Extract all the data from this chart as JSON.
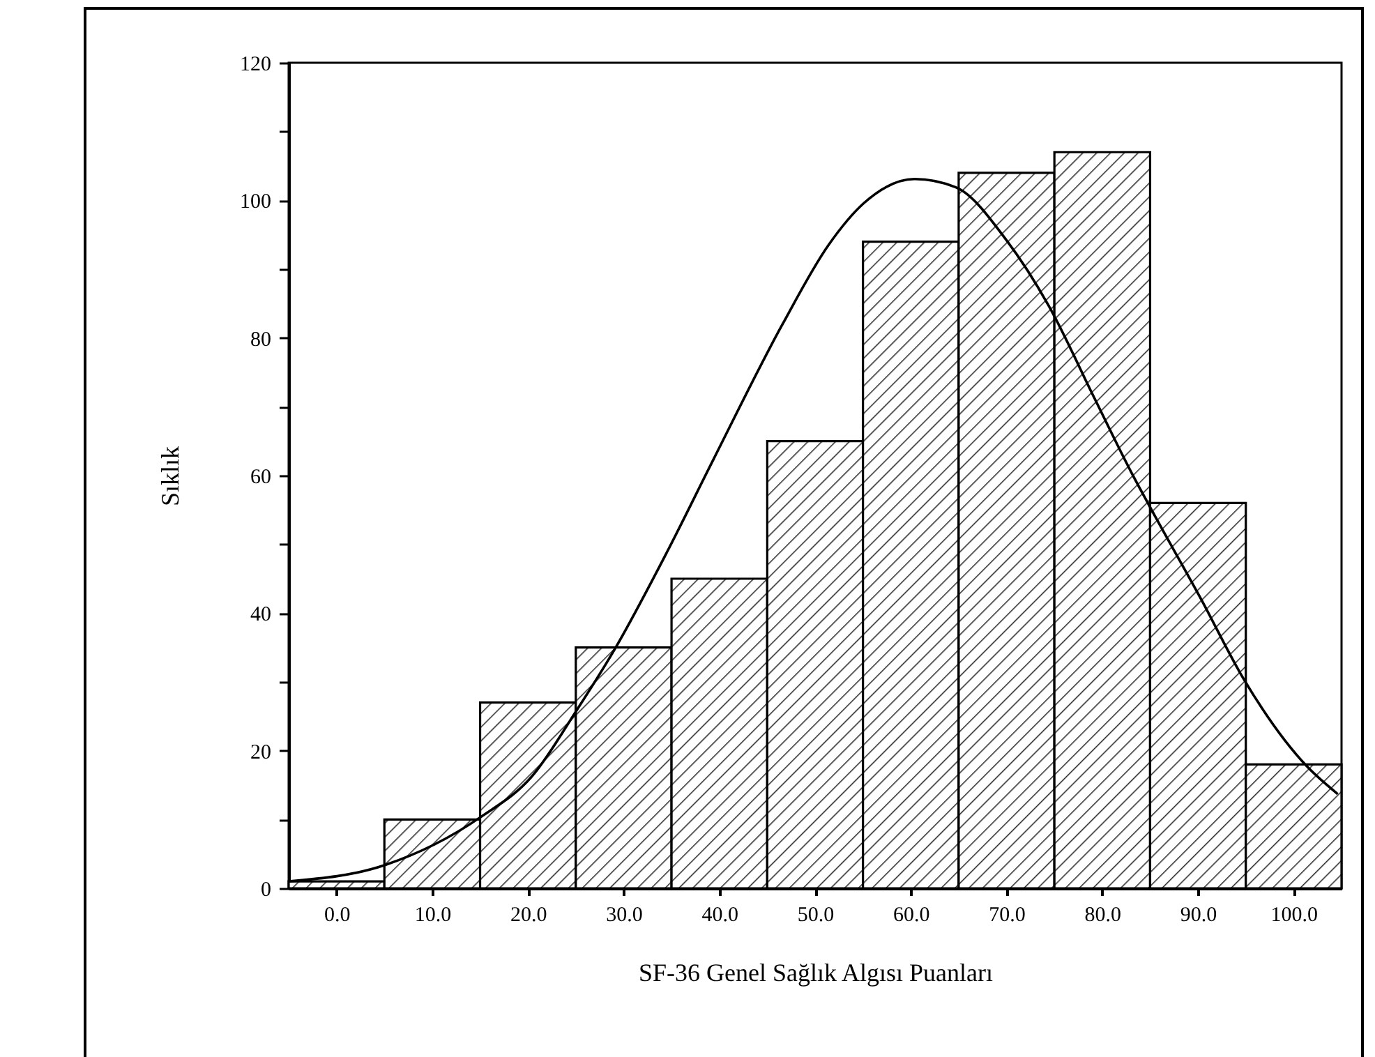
{
  "chart_data": {
    "type": "histogram",
    "xlabel": "SF-36 Genel Sağlık Algısı Puanları",
    "ylabel": "Sıklık",
    "bins": [
      -5,
      5,
      15,
      25,
      35,
      45,
      55,
      65,
      75,
      85,
      95,
      105
    ],
    "values": [
      1,
      10,
      27,
      35,
      45,
      65,
      94,
      104,
      107,
      56,
      18
    ],
    "series": [
      {
        "type": "line",
        "color": "#000000",
        "x": [
          -5,
          5.1,
          15,
          20.5,
          25.1,
          29,
          34.5,
          39.4,
          46.6,
          51.4,
          55.1,
          60.4,
          64.7,
          70,
          74.4,
          79.2,
          83.1,
          84.8,
          90.3,
          94.7,
          101.4,
          104.6
        ],
        "values": [
          1,
          3.4,
          10.3,
          16.4,
          25.9,
          34.6,
          48.8,
          62.4,
          82,
          93.5,
          99.6,
          103.1,
          101.9,
          94.2,
          84.7,
          71.2,
          60.3,
          55.9,
          42.1,
          30.6,
          17.7,
          13.7
        ]
      }
    ],
    "xlim": [
      -5,
      105
    ],
    "xticks": [
      {
        "value": 0,
        "label": "0.0"
      },
      {
        "value": 10,
        "label": "10.0"
      },
      {
        "value": 20,
        "label": "20.0"
      },
      {
        "value": 30,
        "label": "30.0"
      },
      {
        "value": 40,
        "label": "40.0"
      },
      {
        "value": 50,
        "label": "50.0"
      },
      {
        "value": 60,
        "label": "60.0"
      },
      {
        "value": 70,
        "label": "70.0"
      },
      {
        "value": 80,
        "label": "80.0"
      },
      {
        "value": 90,
        "label": "90.0"
      },
      {
        "value": 100,
        "label": "100.0"
      }
    ],
    "ylim": [
      0,
      120
    ],
    "yticks": [
      0,
      {
        "value": 10,
        "label": null
      },
      20,
      {
        "value": 30,
        "label": null
      },
      40,
      {
        "value": 50,
        "label": null
      },
      60,
      {
        "value": 70,
        "label": null
      },
      80,
      {
        "value": 90,
        "label": null
      },
      100,
      {
        "value": 110,
        "label": null
      },
      120
    ],
    "grid": false
  }
}
